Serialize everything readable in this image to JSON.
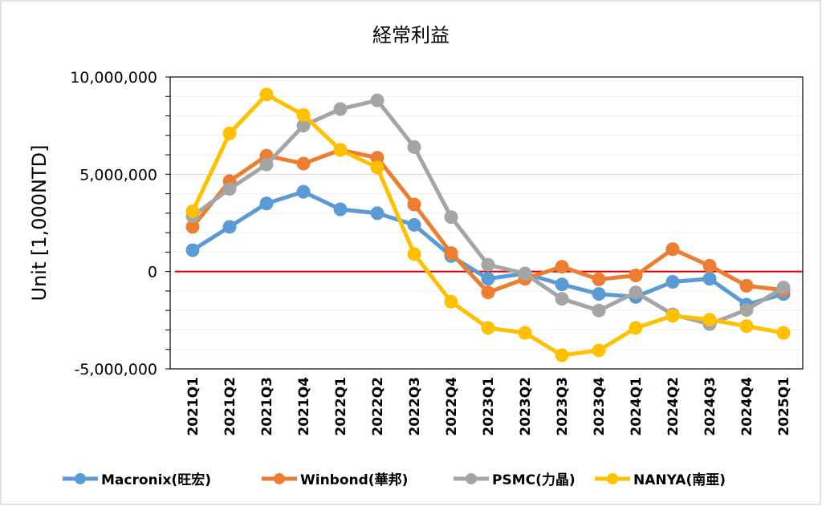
{
  "chart_data": {
    "type": "line",
    "title": "経常利益",
    "ylabel": "Unit [1,000NTD]",
    "xlabel": "",
    "ylim": [
      -5000000,
      10000000
    ],
    "yticks": [
      {
        "value": 10000000,
        "label": "10,000,000",
        "color": "#000000"
      },
      {
        "value": 5000000,
        "label": "5,000,000",
        "color": "#000000"
      },
      {
        "value": 0,
        "label": "0",
        "color": "#000000"
      },
      {
        "value": -5000000,
        "label": "-5,000,000",
        "color": "#e00000"
      }
    ],
    "minor_grid_step": 1000000,
    "grid": true,
    "zero_line_color": "#e00000",
    "legend_position": "bottom",
    "categories": [
      "2021Q1",
      "2021Q2",
      "2021Q3",
      "2021Q4",
      "2022Q1",
      "2022Q2",
      "2022Q3",
      "2022Q4",
      "2023Q1",
      "2023Q2",
      "2023Q3",
      "2023Q4",
      "2024Q1",
      "2024Q2",
      "2024Q3",
      "2024Q4",
      "2025Q1"
    ],
    "series": [
      {
        "name": "Macronix(旺宏)",
        "color": "#5b9bd5",
        "values": [
          1100000,
          2300000,
          3500000,
          4100000,
          3200000,
          3000000,
          2400000,
          800000,
          -370000,
          -100000,
          -660000,
          -1150000,
          -1300000,
          -530000,
          -370000,
          -1700000,
          -1150000
        ]
      },
      {
        "name": "Winbond(華邦)",
        "color": "#ed7d31",
        "values": [
          2300000,
          4650000,
          5950000,
          5550000,
          6250000,
          5850000,
          3450000,
          950000,
          -1070000,
          -370000,
          250000,
          -400000,
          -200000,
          1150000,
          300000,
          -730000,
          -950000
        ]
      },
      {
        "name": "PSMC(力晶)",
        "color": "#a5a5a5",
        "values": [
          2850000,
          4250000,
          5500000,
          7500000,
          8350000,
          8800000,
          6400000,
          2800000,
          350000,
          -100000,
          -1400000,
          -2000000,
          -1070000,
          -2200000,
          -2700000,
          -1970000,
          -820000
        ]
      },
      {
        "name": "NANYA(南亜)",
        "color": "#ffc000",
        "values": [
          3100000,
          7100000,
          9100000,
          8050000,
          6250000,
          5350000,
          900000,
          -1550000,
          -2900000,
          -3150000,
          -4300000,
          -4050000,
          -2900000,
          -2270000,
          -2470000,
          -2800000,
          -3150000
        ]
      }
    ]
  }
}
